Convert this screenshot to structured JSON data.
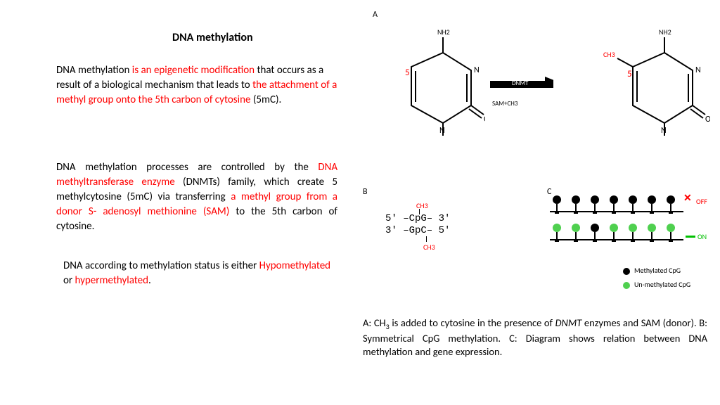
{
  "title": "DNA methylation",
  "p1": {
    "a": "DNA methylation ",
    "b": "is an epigenetic modification ",
    "c": "that occurs as a result of a biological mechanism that leads to ",
    "d": "the attachment of a methyl group onto the 5th carbon of cytosine ",
    "e": "(5mC)."
  },
  "p2": {
    "a": "DNA methylation processes are controlled by the ",
    "b": "DNA methyltransferase enzyme",
    "c": " (DNMTs) family, which create 5 methylcytosine (5mC) via transferring ",
    "d": "a methyl group from a donor S- adenosyl methionine (SAM)",
    "e": " to the 5th carbon of cytosine."
  },
  "p3": {
    "a": "DNA according to methylation status is either ",
    "b": "Hypomethylated",
    "c": " or ",
    "d": "hypermethylated",
    "e": "."
  },
  "labels": {
    "A": "A",
    "B": "B",
    "C": "C"
  },
  "chem": {
    "nh2": "NH2",
    "n": "N",
    "o": "O",
    "five": "5",
    "ch3": "CH3"
  },
  "arrow": {
    "top": "DNMT",
    "bottom": "SAM+CH3"
  },
  "cpg": {
    "ch3": "CH3",
    "l1": "5' ‒CpG‒ 3'",
    "l2": "3' ‒GpC‒ 5'"
  },
  "panelC": {
    "off": "OFF",
    "on": "ON",
    "colors": {
      "meth": "#000000",
      "unmeth": "#4fd04f"
    },
    "top": [
      "m",
      "m",
      "m",
      "m",
      "m",
      "m",
      "m"
    ],
    "bottom": [
      "u",
      "u",
      "m",
      "u",
      "u",
      "u",
      "u"
    ]
  },
  "legend": {
    "meth": "Methylated CpG",
    "unmeth": "Un-methylated CpG"
  },
  "caption": "A: CH₃ is added to cytosine in the presence of DNMT enzymes and SAM (donor). B: Symmetrical CpG methylation. C: Diagram shows relation between DNA methylation and gene expression.",
  "positions": {
    "title": [
      245,
      44
    ],
    "p1": [
      80,
      90,
      400
    ],
    "p2": [
      80,
      228,
      400
    ],
    "p3": [
      90,
      368,
      390
    ],
    "labelA": [
      530,
      14
    ],
    "labelB": [
      516,
      266
    ],
    "labelC": [
      778,
      266
    ],
    "molLeft": [
      530,
      35
    ],
    "molRight": [
      830,
      35
    ],
    "arrow": [
      697,
      111
    ],
    "arrowTop": [
      725,
      112
    ],
    "arrowBot": [
      716,
      130
    ],
    "cpg": [
      548,
      305
    ],
    "cpgCH3a": [
      588,
      287
    ],
    "cpgCH3b": [
      588,
      345
    ],
    "strandTop": [
      782,
      300,
      202
    ],
    "strandBot": [
      782,
      338,
      202
    ],
    "xmark": [
      970,
      275
    ],
    "off": [
      990,
      282
    ],
    "dashOn": [
      975,
      334
    ],
    "on": [
      992,
      332
    ],
    "leg1": [
      886,
      380
    ],
    "leg2": [
      886,
      400
    ],
    "caption": [
      516,
      450,
      490
    ]
  }
}
